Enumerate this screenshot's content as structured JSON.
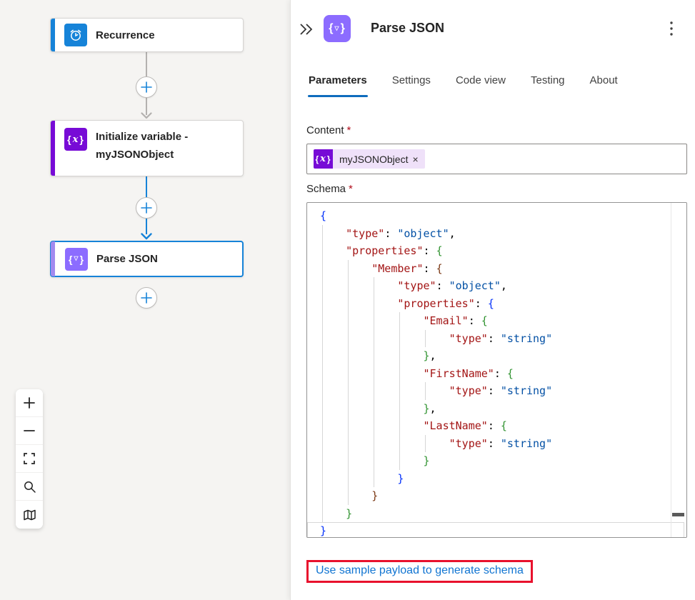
{
  "colors": {
    "accent_blue": "#1683d8",
    "tab_underline": "#0f6cbd",
    "variables_purple": "#770bd6",
    "parse_purple": "#8c6cff",
    "parse_stripe": "#a28aef",
    "link_blue": "#1175d2",
    "annotation_red": "#e8112d",
    "required_red": "#b10e1c"
  },
  "canvas": {
    "nodes": [
      {
        "label": "Recurrence",
        "icon": "recurrence-clock-icon",
        "icon_bg": "#1683d8",
        "stripe": "#1683d8",
        "selected": false
      },
      {
        "label": "Initialize variable - myJSONObject",
        "icon": "variable-fx-icon",
        "icon_bg": "#770bd6",
        "stripe": "#770bd6",
        "selected": false
      },
      {
        "label": "Parse JSON",
        "icon": "parse-json-icon",
        "icon_bg": "#8c6cff",
        "stripe": "#a28aef",
        "selected": true
      }
    ],
    "controls": [
      {
        "icon": "plus-icon"
      },
      {
        "icon": "minus-icon"
      },
      {
        "icon": "fit-screen-icon"
      },
      {
        "icon": "search-icon"
      },
      {
        "icon": "map-icon"
      }
    ]
  },
  "glyphs": {
    "fx": {
      "open": "{",
      "char": "x",
      "close": "}"
    },
    "parse": {
      "open": "{",
      "char": "▽",
      "close": "}"
    }
  },
  "panel": {
    "title": "Parse JSON",
    "tabs": [
      {
        "label": "Parameters",
        "active": true
      },
      {
        "label": "Settings",
        "active": false
      },
      {
        "label": "Code view",
        "active": false
      },
      {
        "label": "Testing",
        "active": false
      },
      {
        "label": "About",
        "active": false
      }
    ],
    "content_field": {
      "label": "Content",
      "required": "*",
      "token": "myJSONObject",
      "token_remove": "×"
    },
    "schema_field": {
      "label": "Schema",
      "required": "*"
    },
    "code": {
      "cursor_line": 19,
      "colors": {
        "k": "#a31515",
        "v": "#0451a5",
        "p": "#000000",
        "b1": "#0431fa",
        "b2": "#319331",
        "b3": "#7b3814"
      },
      "lines": [
        [
          [
            "b1",
            "{"
          ]
        ],
        [
          [
            "p",
            "    "
          ],
          [
            "k",
            "\"type\""
          ],
          [
            "p",
            ": "
          ],
          [
            "v",
            "\"object\""
          ],
          [
            "p",
            ","
          ]
        ],
        [
          [
            "p",
            "    "
          ],
          [
            "k",
            "\"properties\""
          ],
          [
            "p",
            ": "
          ],
          [
            "b2",
            "{"
          ]
        ],
        [
          [
            "p",
            "        "
          ],
          [
            "k",
            "\"Member\""
          ],
          [
            "p",
            ": "
          ],
          [
            "b3",
            "{"
          ]
        ],
        [
          [
            "p",
            "            "
          ],
          [
            "k",
            "\"type\""
          ],
          [
            "p",
            ": "
          ],
          [
            "v",
            "\"object\""
          ],
          [
            "p",
            ","
          ]
        ],
        [
          [
            "p",
            "            "
          ],
          [
            "k",
            "\"properties\""
          ],
          [
            "p",
            ": "
          ],
          [
            "b1",
            "{"
          ]
        ],
        [
          [
            "p",
            "                "
          ],
          [
            "k",
            "\"Email\""
          ],
          [
            "p",
            ": "
          ],
          [
            "b2",
            "{"
          ]
        ],
        [
          [
            "p",
            "                    "
          ],
          [
            "k",
            "\"type\""
          ],
          [
            "p",
            ": "
          ],
          [
            "v",
            "\"string\""
          ]
        ],
        [
          [
            "p",
            "                "
          ],
          [
            "b2",
            "}"
          ],
          [
            "p",
            ","
          ]
        ],
        [
          [
            "p",
            "                "
          ],
          [
            "k",
            "\"FirstName\""
          ],
          [
            "p",
            ": "
          ],
          [
            "b2",
            "{"
          ]
        ],
        [
          [
            "p",
            "                    "
          ],
          [
            "k",
            "\"type\""
          ],
          [
            "p",
            ": "
          ],
          [
            "v",
            "\"string\""
          ]
        ],
        [
          [
            "p",
            "                "
          ],
          [
            "b2",
            "}"
          ],
          [
            "p",
            ","
          ]
        ],
        [
          [
            "p",
            "                "
          ],
          [
            "k",
            "\"LastName\""
          ],
          [
            "p",
            ": "
          ],
          [
            "b2",
            "{"
          ]
        ],
        [
          [
            "p",
            "                    "
          ],
          [
            "k",
            "\"type\""
          ],
          [
            "p",
            ": "
          ],
          [
            "v",
            "\"string\""
          ]
        ],
        [
          [
            "p",
            "                "
          ],
          [
            "b2",
            "}"
          ]
        ],
        [
          [
            "p",
            "            "
          ],
          [
            "b1",
            "}"
          ]
        ],
        [
          [
            "p",
            "        "
          ],
          [
            "b3",
            "}"
          ]
        ],
        [
          [
            "p",
            "    "
          ],
          [
            "b2",
            "}"
          ]
        ],
        [
          [
            "b1",
            "}"
          ]
        ]
      ],
      "guides": [
        {
          "col": 0,
          "from": 2,
          "to": 18
        },
        {
          "col": 4,
          "from": 4,
          "to": 17
        },
        {
          "col": 8,
          "from": 5,
          "to": 16
        },
        {
          "col": 12,
          "from": 7,
          "to": 15
        },
        {
          "col": 16,
          "from": 8,
          "to": 8
        },
        {
          "col": 16,
          "from": 11,
          "to": 11
        },
        {
          "col": 16,
          "from": 14,
          "to": 14
        }
      ]
    },
    "footer_link": "Use sample payload to generate schema"
  }
}
